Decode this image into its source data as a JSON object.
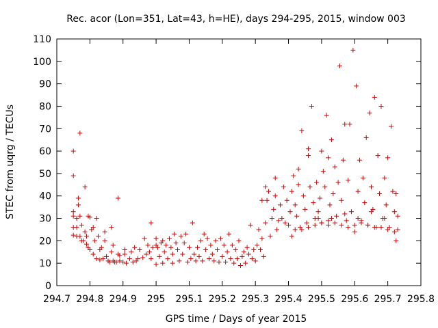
{
  "chart_data": {
    "type": "scatter",
    "title": "Rec. acor (Lon=351, Lat=43, h=HE), days 294-295, 2015, window 003",
    "xlabel": "GPS time / Days of year 2015",
    "ylabel": "STEC from uqrg / TECUs",
    "xlim": [
      294.7,
      295.8
    ],
    "ylim": [
      0,
      110
    ],
    "x_ticks": [
      "294.7",
      "294.8",
      "294.9",
      "295",
      "295.1",
      "295.2",
      "295.3",
      "295.4",
      "295.5",
      "295.6",
      "295.7",
      "295.8"
    ],
    "y_ticks": [
      "0",
      "10",
      "20",
      "30",
      "40",
      "50",
      "60",
      "70",
      "80",
      "90",
      "100",
      "110"
    ],
    "marker": "plus",
    "marker_color": "#cc0000",
    "grid": false,
    "legend": "none",
    "series": [
      {
        "points": [
          [
            294.75,
            60
          ],
          [
            294.75,
            49
          ],
          [
            294.75,
            33
          ],
          [
            294.75,
            31
          ],
          [
            294.75,
            26
          ],
          [
            294.75,
            22.5
          ],
          [
            294.76,
            30
          ],
          [
            294.76,
            26
          ],
          [
            294.76,
            22
          ],
          [
            294.765,
            39
          ],
          [
            294.765,
            36
          ],
          [
            294.77,
            68
          ],
          [
            294.77,
            31
          ],
          [
            294.77,
            22
          ],
          [
            294.775,
            27
          ],
          [
            294.775,
            20
          ],
          [
            294.78,
            20
          ],
          [
            294.785,
            44
          ],
          [
            294.785,
            24
          ],
          [
            294.79,
            22
          ],
          [
            294.79,
            18.5
          ],
          [
            294.795,
            17
          ],
          [
            294.795,
            31
          ],
          [
            294.8,
            30.5
          ],
          [
            294.8,
            16
          ],
          [
            294.805,
            25
          ],
          [
            294.81,
            14
          ],
          [
            294.81,
            26
          ],
          [
            294.815,
            20
          ],
          [
            294.82,
            30
          ],
          [
            294.82,
            12
          ],
          [
            294.825,
            22
          ],
          [
            294.83,
            16
          ],
          [
            294.83,
            11.5
          ],
          [
            294.835,
            17
          ],
          [
            294.84,
            12
          ],
          [
            294.845,
            24
          ],
          [
            294.845,
            20
          ],
          [
            294.85,
            13
          ],
          [
            294.855,
            11
          ],
          [
            294.86,
            10.5
          ],
          [
            294.865,
            15
          ],
          [
            294.865,
            26
          ],
          [
            294.87,
            11
          ],
          [
            294.87,
            18
          ],
          [
            294.875,
            10.5
          ],
          [
            294.88,
            10.5
          ],
          [
            294.885,
            39
          ],
          [
            294.885,
            14
          ],
          [
            294.89,
            11
          ],
          [
            294.89,
            13.5
          ],
          [
            294.9,
            10.5
          ],
          [
            294.905,
            16
          ],
          [
            294.905,
            14
          ],
          [
            294.91,
            10
          ],
          [
            294.92,
            12
          ],
          [
            294.925,
            15
          ],
          [
            294.93,
            10.5
          ],
          [
            294.935,
            17
          ],
          [
            294.94,
            11
          ],
          [
            294.945,
            12
          ],
          [
            294.95,
            16
          ],
          [
            294.96,
            12.5
          ],
          [
            294.965,
            21
          ],
          [
            294.97,
            14
          ],
          [
            294.975,
            18
          ],
          [
            294.98,
            15
          ],
          [
            294.985,
            12
          ],
          [
            294.985,
            28
          ],
          [
            294.99,
            17
          ],
          [
            295,
            21
          ],
          [
            295,
            18
          ],
          [
            295,
            9.5
          ],
          [
            295.005,
            17
          ],
          [
            295.01,
            13
          ],
          [
            295.015,
            19
          ],
          [
            295.02,
            20
          ],
          [
            295.02,
            10
          ],
          [
            295.025,
            15
          ],
          [
            295.03,
            18
          ],
          [
            295.035,
            12
          ],
          [
            295.04,
            21
          ],
          [
            295.045,
            17
          ],
          [
            295.05,
            10
          ],
          [
            295.05,
            14
          ],
          [
            295.055,
            23
          ],
          [
            295.06,
            19
          ],
          [
            295.065,
            16
          ],
          [
            295.07,
            11
          ],
          [
            295.075,
            22
          ],
          [
            295.08,
            14
          ],
          [
            295.085,
            19
          ],
          [
            295.09,
            23
          ],
          [
            295.095,
            10.5
          ],
          [
            295.1,
            17
          ],
          [
            295.105,
            12
          ],
          [
            295.11,
            28
          ],
          [
            295.115,
            14
          ],
          [
            295.12,
            11
          ],
          [
            295.125,
            17
          ],
          [
            295.13,
            13
          ],
          [
            295.135,
            20
          ],
          [
            295.14,
            11
          ],
          [
            295.145,
            23
          ],
          [
            295.15,
            16
          ],
          [
            295.155,
            21
          ],
          [
            295.16,
            12
          ],
          [
            295.165,
            18
          ],
          [
            295.17,
            14
          ],
          [
            295.175,
            11
          ],
          [
            295.18,
            20
          ],
          [
            295.185,
            16
          ],
          [
            295.19,
            10.5
          ],
          [
            295.195,
            21
          ],
          [
            295.2,
            13
          ],
          [
            295.205,
            18
          ],
          [
            295.21,
            10.5
          ],
          [
            295.215,
            15
          ],
          [
            295.22,
            23
          ],
          [
            295.225,
            12
          ],
          [
            295.23,
            18
          ],
          [
            295.235,
            10
          ],
          [
            295.24,
            16
          ],
          [
            295.245,
            12
          ],
          [
            295.25,
            20
          ],
          [
            295.255,
            9
          ],
          [
            295.26,
            13
          ],
          [
            295.265,
            15
          ],
          [
            295.27,
            10
          ],
          [
            295.275,
            17
          ],
          [
            295.28,
            14
          ],
          [
            295.285,
            27
          ],
          [
            295.29,
            12
          ],
          [
            295.295,
            16
          ],
          [
            295.3,
            11
          ],
          [
            295.305,
            18
          ],
          [
            295.31,
            25
          ],
          [
            295.315,
            16
          ],
          [
            295.32,
            21
          ],
          [
            295.325,
            13
          ],
          [
            295.33,
            28
          ],
          [
            295.32,
            38
          ],
          [
            295.33,
            44
          ],
          [
            295.335,
            38
          ],
          [
            295.34,
            42
          ],
          [
            295.345,
            22
          ],
          [
            295.35,
            30
          ],
          [
            295.355,
            34
          ],
          [
            295.36,
            40
          ],
          [
            295.36,
            48
          ],
          [
            295.365,
            25
          ],
          [
            295.37,
            29
          ],
          [
            295.375,
            36
          ],
          [
            295.38,
            30
          ],
          [
            295.385,
            44
          ],
          [
            295.39,
            28
          ],
          [
            295.395,
            38
          ],
          [
            295.4,
            27
          ],
          [
            295.405,
            33
          ],
          [
            295.41,
            42
          ],
          [
            295.415,
            49
          ],
          [
            295.42,
            36
          ],
          [
            295.425,
            31
          ],
          [
            295.43,
            45
          ],
          [
            295.43,
            52
          ],
          [
            295.435,
            26
          ],
          [
            295.44,
            69
          ],
          [
            295.445,
            40
          ],
          [
            295.45,
            34
          ],
          [
            295.455,
            28
          ],
          [
            295.46,
            58
          ],
          [
            295.46,
            61
          ],
          [
            295.465,
            44
          ],
          [
            295.47,
            80
          ],
          [
            295.475,
            37
          ],
          [
            295.48,
            30
          ],
          [
            295.485,
            46
          ],
          [
            295.49,
            33
          ],
          [
            295.495,
            39
          ],
          [
            295.5,
            28
          ],
          [
            295.5,
            60
          ],
          [
            295.505,
            51
          ],
          [
            295.51,
            44
          ],
          [
            295.515,
            76
          ],
          [
            295.52,
            29
          ],
          [
            295.52,
            57
          ],
          [
            295.525,
            36
          ],
          [
            295.53,
            65
          ],
          [
            295.535,
            41
          ],
          [
            295.54,
            53
          ],
          [
            295.545,
            31
          ],
          [
            295.55,
            46
          ],
          [
            295.555,
            98
          ],
          [
            295.56,
            38
          ],
          [
            295.565,
            56
          ],
          [
            295.57,
            72
          ],
          [
            295.575,
            29
          ],
          [
            295.58,
            47
          ],
          [
            295.585,
            72
          ],
          [
            295.59,
            33
          ],
          [
            295.595,
            105
          ],
          [
            295.6,
            24
          ],
          [
            295.605,
            89
          ],
          [
            295.61,
            42
          ],
          [
            295.615,
            56
          ],
          [
            295.62,
            29
          ],
          [
            295.625,
            48
          ],
          [
            295.63,
            37
          ],
          [
            295.635,
            66
          ],
          [
            295.64,
            27
          ],
          [
            295.645,
            77
          ],
          [
            295.65,
            44
          ],
          [
            295.655,
            34
          ],
          [
            295.66,
            84
          ],
          [
            295.665,
            26
          ],
          [
            295.67,
            58
          ],
          [
            295.675,
            41
          ],
          [
            295.68,
            80
          ],
          [
            295.685,
            30
          ],
          [
            295.69,
            48
          ],
          [
            295.695,
            36
          ],
          [
            295.7,
            57
          ],
          [
            295.705,
            26
          ],
          [
            295.71,
            71
          ],
          [
            295.715,
            42
          ],
          [
            295.72,
            24
          ],
          [
            295.72,
            33
          ],
          [
            295.725,
            20
          ],
          [
            295.725,
            41
          ],
          [
            295.73,
            31
          ],
          [
            295.73,
            25
          ],
          [
            295.48,
            27
          ],
          [
            295.5,
            28
          ],
          [
            295.52,
            27
          ],
          [
            295.54,
            28
          ],
          [
            295.56,
            27
          ],
          [
            295.58,
            26
          ],
          [
            295.6,
            27
          ],
          [
            295.62,
            28
          ],
          [
            295.64,
            27
          ],
          [
            295.66,
            26
          ],
          [
            295.68,
            26
          ],
          [
            295.7,
            25
          ],
          [
            295.41,
            22
          ],
          [
            295.42,
            25
          ],
          [
            295.44,
            25
          ],
          [
            295.46,
            26
          ],
          [
            295.49,
            30
          ],
          [
            295.53,
            30
          ],
          [
            295.57,
            32
          ],
          [
            295.61,
            30
          ],
          [
            295.65,
            33
          ],
          [
            295.69,
            30
          ]
        ]
      }
    ]
  }
}
